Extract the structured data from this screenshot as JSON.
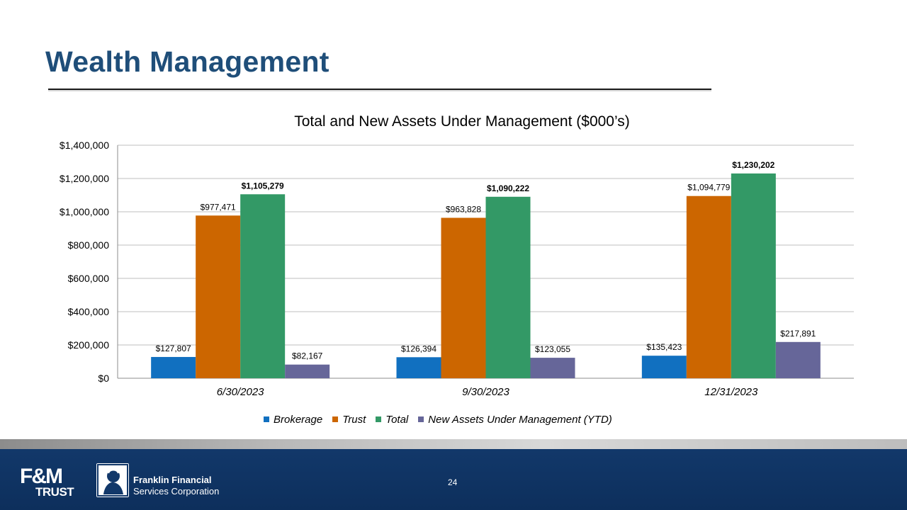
{
  "slide": {
    "title": "Wealth Management",
    "page_number": "24"
  },
  "footer": {
    "logo_left": {
      "mark": "F&M",
      "sub": "TRUST"
    },
    "logo_right": {
      "line1": "Franklin Financial",
      "line2": "Services Corporation"
    }
  },
  "chart_data": {
    "type": "bar",
    "title": "Total and New Assets Under Management ($000’s)",
    "xlabel": "",
    "ylabel": "",
    "ylim": [
      0,
      1400000
    ],
    "y_ticks": [
      "$0",
      "$200,000",
      "$400,000",
      "$600,000",
      "$800,000",
      "$1,000,000",
      "$1,200,000",
      "$1,400,000"
    ],
    "y_tick_values": [
      0,
      200000,
      400000,
      600000,
      800000,
      1000000,
      1200000,
      1400000
    ],
    "grid": true,
    "legend_position": "bottom",
    "categories": [
      "6/30/2023",
      "9/30/2023",
      "12/31/2023"
    ],
    "series": [
      {
        "name": "Brokerage",
        "color": "#1170c0",
        "values": [
          127807,
          126394,
          135423
        ],
        "labels": [
          "$127,807",
          "$126,394",
          "$135,423"
        ],
        "label_bold": false
      },
      {
        "name": "Trust",
        "color": "#cc6600",
        "values": [
          977471,
          963828,
          1094779
        ],
        "labels": [
          "$977,471",
          "$963,828",
          "$1,094,779"
        ],
        "label_bold": false
      },
      {
        "name": "Total",
        "color": "#339966",
        "values": [
          1105279,
          1090222,
          1230202
        ],
        "labels": [
          "$1,105,279",
          "$1,090,222",
          "$1,230,202"
        ],
        "label_bold": true
      },
      {
        "name": "New Assets Under Management (YTD)",
        "color": "#666699",
        "values": [
          82167,
          123055,
          217891
        ],
        "labels": [
          "$82,167",
          "$123,055",
          "$217,891"
        ],
        "label_bold": false
      }
    ]
  }
}
